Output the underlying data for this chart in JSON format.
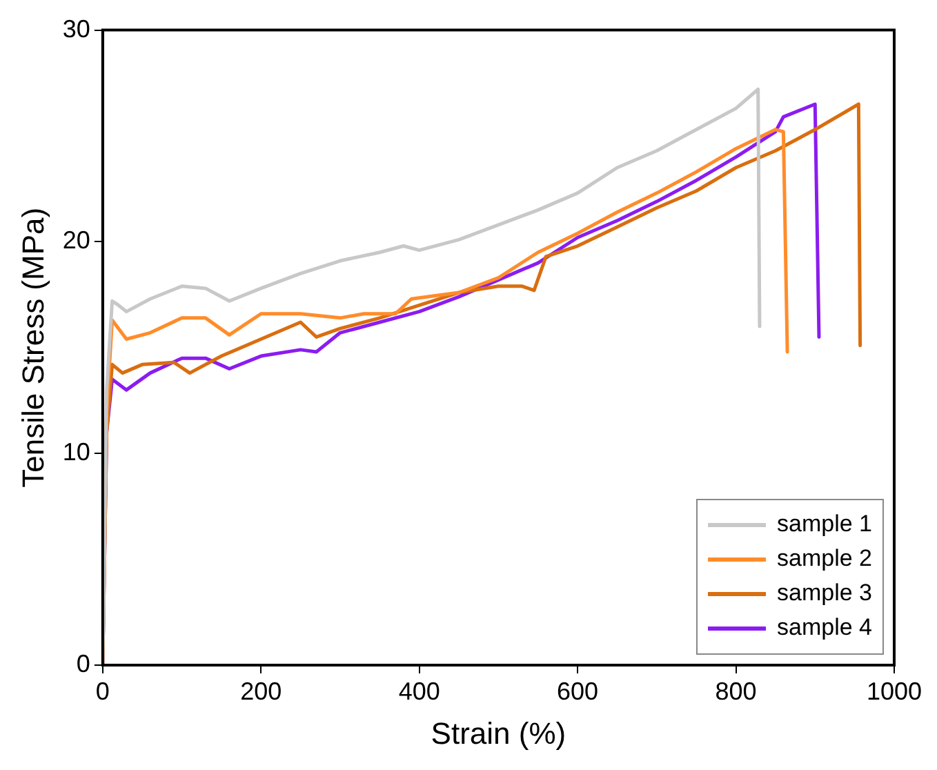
{
  "chart_data": {
    "type": "line",
    "xlabel": "Strain (%)",
    "ylabel": "Tensile Stress (MPa)",
    "xlim": [
      0,
      1000
    ],
    "xticks": [
      0,
      200,
      400,
      600,
      800,
      1000
    ],
    "ylim": [
      0,
      30
    ],
    "yticks": [
      0,
      10,
      20,
      30
    ],
    "grid": false,
    "legend": "bottom right",
    "marker": "none",
    "line_style": "solid",
    "series": [
      {
        "name": "sample 1",
        "color": "#c8c8c8",
        "x": [
          0,
          5,
          12,
          20,
          30,
          60,
          100,
          130,
          160,
          200,
          250,
          300,
          350,
          380,
          400,
          450,
          500,
          550,
          600,
          650,
          700,
          750,
          800,
          828,
          830
        ],
        "values": [
          0,
          13,
          17.2,
          17,
          16.7,
          17.3,
          17.9,
          17.8,
          17.2,
          17.8,
          18.5,
          19.1,
          19.5,
          19.8,
          19.6,
          20.1,
          20.8,
          21.5,
          22.3,
          23.5,
          24.3,
          25.3,
          26.3,
          27.2,
          16
        ]
      },
      {
        "name": "sample 2",
        "color": "#ff8c2a",
        "x": [
          0,
          5,
          12,
          30,
          60,
          100,
          130,
          160,
          200,
          250,
          300,
          330,
          370,
          390,
          450,
          500,
          550,
          600,
          650,
          700,
          750,
          800,
          850,
          860,
          865
        ],
        "values": [
          0,
          12,
          16.3,
          15.4,
          15.7,
          16.4,
          16.4,
          15.6,
          16.6,
          16.6,
          16.4,
          16.6,
          16.6,
          17.3,
          17.6,
          18.3,
          19.5,
          20.4,
          21.4,
          22.3,
          23.3,
          24.4,
          25.3,
          25.2,
          14.8
        ]
      },
      {
        "name": "sample 3",
        "color": "#d96e10",
        "x": [
          0,
          5,
          12,
          25,
          50,
          90,
          110,
          150,
          200,
          250,
          270,
          300,
          350,
          400,
          450,
          500,
          530,
          545,
          560,
          600,
          650,
          700,
          750,
          800,
          850,
          900,
          955,
          957
        ],
        "values": [
          0,
          11,
          14.2,
          13.8,
          14.2,
          14.3,
          13.8,
          14.6,
          15.4,
          16.2,
          15.5,
          15.9,
          16.4,
          17,
          17.6,
          17.9,
          17.9,
          17.7,
          19.3,
          19.8,
          20.7,
          21.6,
          22.4,
          23.5,
          24.3,
          25.3,
          26.5,
          15.1
        ]
      },
      {
        "name": "sample 4",
        "color": "#8b1cf0",
        "x": [
          0,
          5,
          12,
          30,
          60,
          100,
          130,
          160,
          200,
          250,
          270,
          300,
          350,
          400,
          450,
          500,
          550,
          600,
          650,
          700,
          750,
          800,
          850,
          860,
          900,
          905
        ],
        "values": [
          0,
          11,
          13.5,
          13,
          13.8,
          14.5,
          14.5,
          14,
          14.6,
          14.9,
          14.8,
          15.7,
          16.2,
          16.7,
          17.4,
          18.2,
          19,
          20.2,
          21,
          21.9,
          22.9,
          24,
          25.2,
          25.9,
          26.5,
          15.5
        ]
      }
    ]
  }
}
